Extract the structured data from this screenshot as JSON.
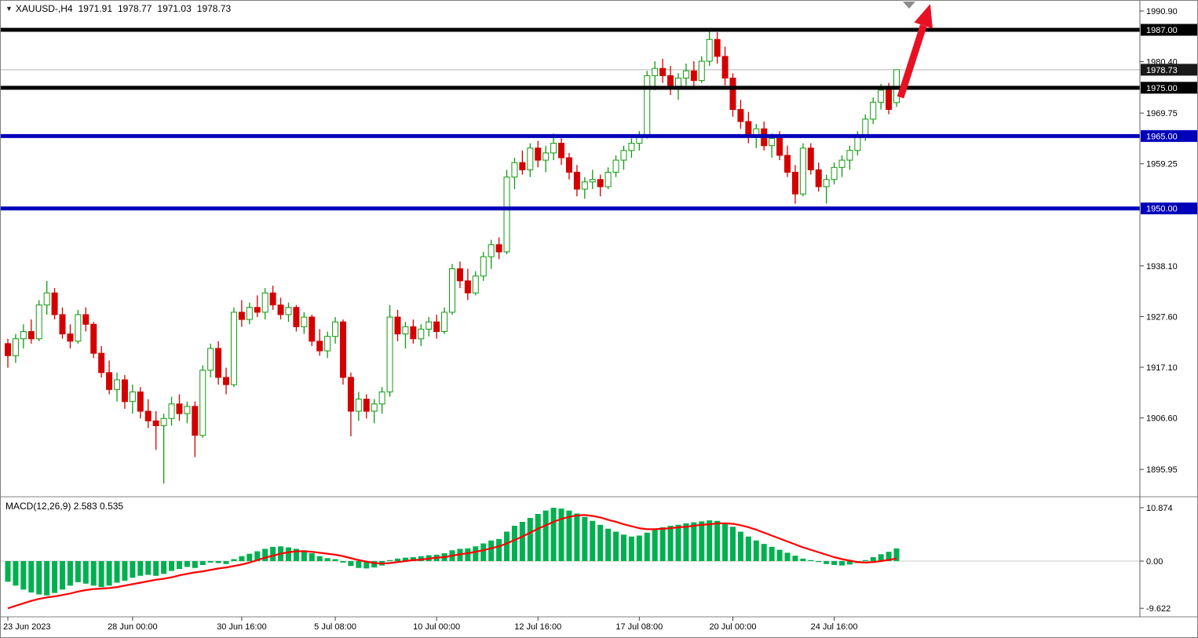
{
  "colors": {
    "bull_fill": "#ffffff",
    "bull_stroke": "#0f9b0f",
    "bear": "#d40000",
    "histogram": "#00b050",
    "signal": "#ff0000",
    "arrow": "#e81123",
    "bid_line": "#b4b4b4",
    "bid_badge": "#1a1a1a",
    "axis_text": "#000000"
  },
  "header": {
    "direction_icon": "▼",
    "symbol_period": "XAUUSD-,H4",
    "open": "1971.91",
    "high": "1978.77",
    "low": "1971.03",
    "close": "1978.73"
  },
  "chart_data": {
    "type": "candlestick",
    "symbol": "XAUUSD-",
    "timeframe": "H4",
    "last_ohlc": {
      "open": 1971.91,
      "high": 1978.77,
      "low": 1971.03,
      "close": 1978.73
    },
    "price_axis": {
      "tick_labels": [
        "1990.90",
        "1980.40",
        "1969.75",
        "1959.25",
        "1938.10",
        "1927.60",
        "1917.10",
        "1906.60",
        "1895.95"
      ]
    },
    "levels": [
      {
        "label": "1987.00",
        "price": 1987.0,
        "color": "#000000",
        "thickness": 5
      },
      {
        "label": "1975.00",
        "price": 1975.0,
        "color": "#000000",
        "thickness": 5
      },
      {
        "label": "1965.00",
        "price": 1965.0,
        "color": "#0000bb",
        "thickness": 5
      },
      {
        "label": "1950.00",
        "price": 1950.0,
        "color": "#0000bb",
        "thickness": 5
      }
    ],
    "current_price": {
      "label": "1978.73",
      "value": 1978.73
    },
    "time_axis": {
      "labels": [
        {
          "text": "23 Jun 2023",
          "index": 0
        },
        {
          "text": "28 Jun 00:00",
          "index": 16
        },
        {
          "text": "30 Jun 16:00",
          "index": 30
        },
        {
          "text": "5 Jul 08:00",
          "index": 42
        },
        {
          "text": "10 Jul 00:00",
          "index": 55
        },
        {
          "text": "12 Jul 16:00",
          "index": 68
        },
        {
          "text": "17 Jul 08:00",
          "index": 81
        },
        {
          "text": "20 Jul 00:00",
          "index": 93
        },
        {
          "text": "24 Jul 16:00",
          "index": 106
        }
      ]
    },
    "candles": [
      [
        1922,
        1923,
        1917,
        1919.5
      ],
      [
        1919.5,
        1924,
        1918,
        1923
      ],
      [
        1923,
        1926,
        1921,
        1924.5
      ],
      [
        1924.5,
        1927,
        1922,
        1923
      ],
      [
        1923,
        1931,
        1922.5,
        1930
      ],
      [
        1930,
        1935,
        1928,
        1932.5
      ],
      [
        1932.5,
        1933.5,
        1927,
        1928
      ],
      [
        1928,
        1929.5,
        1923,
        1924
      ],
      [
        1924,
        1926,
        1921,
        1922.5
      ],
      [
        1922.5,
        1929,
        1922,
        1928
      ],
      [
        1928,
        1929.5,
        1924.5,
        1926
      ],
      [
        1926,
        1926.5,
        1919,
        1920
      ],
      [
        1920,
        1921.5,
        1915,
        1916
      ],
      [
        1916,
        1918.5,
        1911.5,
        1912.5
      ],
      [
        1912.5,
        1916,
        1910,
        1914.5
      ],
      [
        1914.5,
        1915.5,
        1908.5,
        1910
      ],
      [
        1910,
        1913.5,
        1907.5,
        1912
      ],
      [
        1912,
        1913,
        1906.5,
        1908
      ],
      [
        1908,
        1910.5,
        1904.5,
        1906
      ],
      [
        1906,
        1908,
        1900,
        1905
      ],
      [
        1905,
        1907.5,
        1893,
        1906.5
      ],
      [
        1906.5,
        1911,
        1905,
        1909.5
      ],
      [
        1909.5,
        1911.5,
        1906,
        1907.5
      ],
      [
        1907.5,
        1910,
        1905.5,
        1909
      ],
      [
        1909,
        1910,
        1898.5,
        1903
      ],
      [
        1903,
        1917.5,
        1902.5,
        1916.5
      ],
      [
        1916.5,
        1922,
        1915,
        1921
      ],
      [
        1921,
        1922.5,
        1913.5,
        1915
      ],
      [
        1915,
        1917,
        1911.5,
        1913.5
      ],
      [
        1913.5,
        1929.5,
        1913,
        1928.5
      ],
      [
        1928.5,
        1931,
        1925.5,
        1927
      ],
      [
        1927,
        1930.5,
        1926,
        1929.5
      ],
      [
        1929.5,
        1932,
        1927.5,
        1928.5
      ],
      [
        1928.5,
        1933.5,
        1927,
        1932.5
      ],
      [
        1932.5,
        1934,
        1929,
        1930
      ],
      [
        1930,
        1931.5,
        1927,
        1928
      ],
      [
        1928,
        1930.5,
        1926.5,
        1929.5
      ],
      [
        1929.5,
        1930,
        1924.5,
        1925.5
      ],
      [
        1925.5,
        1928.5,
        1924,
        1927.5
      ],
      [
        1927.5,
        1928,
        1921.5,
        1922.5
      ],
      [
        1922.5,
        1925,
        1919.5,
        1920.5
      ],
      [
        1920.5,
        1924.5,
        1919,
        1923.5
      ],
      [
        1923.5,
        1927.5,
        1922,
        1926.5
      ],
      [
        1926.5,
        1927,
        1913.5,
        1915
      ],
      [
        1915,
        1916,
        1902.8,
        1908
      ],
      [
        1908,
        1912,
        1906,
        1910.5
      ],
      [
        1910.5,
        1911.5,
        1906.5,
        1908
      ],
      [
        1908,
        1910.5,
        1905.5,
        1909.5
      ],
      [
        1909.5,
        1913,
        1907.5,
        1912
      ],
      [
        1912,
        1930,
        1911,
        1927.5
      ],
      [
        1927.5,
        1929,
        1922.5,
        1924
      ],
      [
        1924,
        1926.5,
        1921,
        1925.5
      ],
      [
        1925.5,
        1927,
        1922,
        1923
      ],
      [
        1923,
        1926,
        1921.5,
        1925
      ],
      [
        1925,
        1927.5,
        1923.5,
        1926.5
      ],
      [
        1926.5,
        1928,
        1923,
        1924.5
      ],
      [
        1924.5,
        1929.5,
        1924,
        1928.5
      ],
      [
        1928.5,
        1938.5,
        1928,
        1937.5
      ],
      [
        1937.5,
        1939,
        1933.5,
        1935
      ],
      [
        1935,
        1937.5,
        1931,
        1932.5
      ],
      [
        1932.5,
        1937,
        1932,
        1936
      ],
      [
        1936,
        1941,
        1935,
        1940
      ],
      [
        1940,
        1943.5,
        1937.5,
        1942.5
      ],
      [
        1942.5,
        1944,
        1939.5,
        1941
      ],
      [
        1941,
        1958,
        1940.5,
        1956.5
      ],
      [
        1956.5,
        1960.5,
        1954,
        1959.5
      ],
      [
        1959.5,
        1962,
        1957,
        1958
      ],
      [
        1958,
        1963.5,
        1956.5,
        1962.5
      ],
      [
        1962.5,
        1964,
        1958.5,
        1960
      ],
      [
        1960,
        1963,
        1957.5,
        1961.5
      ],
      [
        1961.5,
        1965.5,
        1960,
        1963.5
      ],
      [
        1963.5,
        1964.5,
        1959,
        1960.5
      ],
      [
        1960.5,
        1961.5,
        1956,
        1957.5
      ],
      [
        1957.5,
        1959,
        1952.5,
        1954
      ],
      [
        1954,
        1956.5,
        1952,
        1955.5
      ],
      [
        1955.5,
        1958,
        1954,
        1956
      ],
      [
        1956,
        1957,
        1952.5,
        1954.5
      ],
      [
        1954.5,
        1958.5,
        1954,
        1957.5
      ],
      [
        1957.5,
        1961,
        1956.5,
        1960
      ],
      [
        1960,
        1963,
        1958,
        1962
      ],
      [
        1962,
        1964.5,
        1960.5,
        1963.5
      ],
      [
        1963.5,
        1966,
        1962,
        1965
      ],
      [
        1965,
        1978.5,
        1964.5,
        1977.5
      ],
      [
        1977.5,
        1980.5,
        1974.5,
        1979
      ],
      [
        1979,
        1981,
        1976,
        1977.5
      ],
      [
        1977.5,
        1979.5,
        1973.5,
        1975
      ],
      [
        1975,
        1978,
        1972.5,
        1977
      ],
      [
        1977,
        1980,
        1975.5,
        1978.5
      ],
      [
        1978.5,
        1980.5,
        1975,
        1976.5
      ],
      [
        1976.5,
        1981.5,
        1976,
        1980.5
      ],
      [
        1980.5,
        1987.2,
        1979.5,
        1985
      ],
      [
        1985,
        1986.5,
        1980,
        1981.5
      ],
      [
        1981.5,
        1983.5,
        1975.5,
        1977
      ],
      [
        1977,
        1978,
        1969,
        1970.5
      ],
      [
        1970.5,
        1972.5,
        1966.5,
        1968
      ],
      [
        1968,
        1970,
        1963.5,
        1965
      ],
      [
        1965,
        1967.5,
        1962.5,
        1966.5
      ],
      [
        1966.5,
        1968,
        1962,
        1963
      ],
      [
        1963,
        1965.5,
        1960.5,
        1964.5
      ],
      [
        1964.5,
        1966,
        1960,
        1961
      ],
      [
        1961,
        1963,
        1956.5,
        1957.5
      ],
      [
        1957.5,
        1959,
        1951,
        1953
      ],
      [
        1953,
        1963.5,
        1952.5,
        1962.5
      ],
      [
        1962.5,
        1963.5,
        1957,
        1958
      ],
      [
        1958,
        1959.5,
        1953.5,
        1954.5
      ],
      [
        1954.5,
        1957,
        1951,
        1956
      ],
      [
        1956,
        1959.5,
        1955,
        1958.5
      ],
      [
        1958.5,
        1961,
        1956.5,
        1960
      ],
      [
        1960,
        1963,
        1958,
        1962
      ],
      [
        1962,
        1966,
        1961,
        1965
      ],
      [
        1965,
        1969.5,
        1964,
        1968.5
      ],
      [
        1968.5,
        1973,
        1967.5,
        1972
      ],
      [
        1972,
        1975.8,
        1970.5,
        1974.5
      ],
      [
        1974.5,
        1976,
        1969.5,
        1970.5
      ],
      [
        1971.91,
        1978.77,
        1971.03,
        1978.73
      ]
    ],
    "macd": {
      "label": "MACD(12,26,9) 2.583 0.535",
      "macd_value": 2.583,
      "signal_value": 0.535,
      "axis_tick_labels": [
        "10.874",
        "0.00",
        "-9.622"
      ],
      "histogram": [
        -4.2,
        -5.0,
        -5.8,
        -6.4,
        -6.8,
        -7.0,
        -6.5,
        -5.8,
        -5.0,
        -4.3,
        -4.6,
        -5.0,
        -5.3,
        -5.0,
        -4.4,
        -4.0,
        -3.4,
        -3.0,
        -2.8,
        -3.0,
        -2.6,
        -2.0,
        -1.6,
        -1.2,
        -1.4,
        -0.8,
        -0.3,
        -0.4,
        -0.6,
        0.4,
        1.0,
        1.5,
        2.0,
        2.5,
        2.9,
        3.0,
        2.8,
        2.5,
        2.2,
        1.6,
        1.0,
        0.6,
        0.4,
        -0.3,
        -1.0,
        -1.4,
        -1.5,
        -1.3,
        -0.9,
        0.2,
        0.5,
        0.7,
        0.8,
        1.0,
        1.2,
        1.3,
        1.6,
        2.2,
        2.5,
        2.6,
        3.0,
        3.6,
        4.2,
        4.5,
        6.0,
        7.2,
        8.0,
        8.8,
        9.6,
        10.3,
        10.874,
        10.7,
        10.3,
        9.7,
        9.0,
        8.2,
        7.4,
        6.6,
        6.0,
        5.4,
        5.0,
        5.2,
        5.8,
        6.4,
        6.9,
        7.2,
        7.4,
        7.7,
        7.9,
        8.1,
        8.3,
        8.2,
        7.8,
        7.0,
        6.0,
        5.0,
        4.2,
        3.5,
        2.9,
        2.3,
        1.7,
        1.1,
        0.5,
        0.2,
        -0.2,
        -0.6,
        -0.8,
        -0.9,
        -0.7,
        -0.4,
        0.2,
        0.8,
        1.4,
        1.9,
        2.583
      ],
      "signal": [
        -9.622,
        -9.1,
        -8.6,
        -8.1,
        -7.7,
        -7.4,
        -7.2,
        -6.9,
        -6.6,
        -6.2,
        -5.9,
        -5.7,
        -5.6,
        -5.5,
        -5.3,
        -5.0,
        -4.7,
        -4.4,
        -4.1,
        -3.8,
        -3.6,
        -3.3,
        -2.9,
        -2.6,
        -2.3,
        -2.1,
        -1.8,
        -1.5,
        -1.3,
        -1.0,
        -0.7,
        -0.3,
        0.2,
        0.7,
        1.1,
        1.5,
        1.8,
        2.0,
        2.0,
        1.9,
        1.7,
        1.5,
        1.3,
        1.0,
        0.6,
        0.2,
        -0.1,
        -0.4,
        -0.5,
        -0.4,
        -0.2,
        0.0,
        0.2,
        0.3,
        0.5,
        0.7,
        0.8,
        1.1,
        1.4,
        1.6,
        1.9,
        2.2,
        2.6,
        3.0,
        3.6,
        4.3,
        5.0,
        5.8,
        6.6,
        7.3,
        8.0,
        8.6,
        9.0,
        9.3,
        9.4,
        9.2,
        8.9,
        8.4,
        8.0,
        7.5,
        7.1,
        6.7,
        6.5,
        6.5,
        6.6,
        6.7,
        6.9,
        7.0,
        7.2,
        7.4,
        7.5,
        7.7,
        7.7,
        7.6,
        7.3,
        6.9,
        6.4,
        5.8,
        5.2,
        4.6,
        4.0,
        3.4,
        2.8,
        2.3,
        1.8,
        1.3,
        0.8,
        0.4,
        0.1,
        -0.2,
        -0.3,
        -0.2,
        0.0,
        0.25,
        0.535
      ]
    },
    "annotations": [
      {
        "type": "up-arrow",
        "color": "#e81123"
      },
      {
        "type": "scroll-marker",
        "color": "#8c8c8c"
      }
    ]
  }
}
